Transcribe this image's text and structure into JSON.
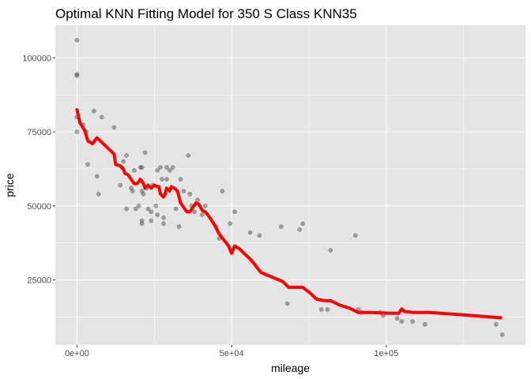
{
  "chart_data": {
    "type": "scatter",
    "title": "Optimal KNN Fitting Model for 350 S Class KNN35",
    "xlabel": "mileage",
    "ylabel": "price",
    "xlim": [
      -7000,
      145000
    ],
    "ylim": [
      3000,
      111000
    ],
    "x_ticks": [
      0,
      50000,
      100000
    ],
    "x_tick_labels": [
      "0e+00",
      "5e+04",
      "1e+05"
    ],
    "y_ticks": [
      25000,
      50000,
      75000,
      100000
    ],
    "y_tick_labels": [
      "25000",
      "50000",
      "75000",
      "100000"
    ],
    "grid": true,
    "legend": "none",
    "colors": {
      "panel": "#e5e5e5",
      "grid": "#ffffff",
      "points": "#333333",
      "fit_line": "#ff0000"
    },
    "series": [
      {
        "type": "scatter",
        "points": [
          [
            0,
            106000
          ],
          [
            0,
            94500
          ],
          [
            0,
            94000
          ],
          [
            0,
            80000
          ],
          [
            0,
            75000
          ],
          [
            2000,
            77500
          ],
          [
            3000,
            75000
          ],
          [
            3500,
            64000
          ],
          [
            5500,
            82000
          ],
          [
            6500,
            60000
          ],
          [
            7000,
            54000
          ],
          [
            8000,
            80000
          ],
          [
            12000,
            76500
          ],
          [
            14000,
            57000
          ],
          [
            14500,
            63000
          ],
          [
            15000,
            65000
          ],
          [
            16000,
            67000
          ],
          [
            16000,
            49000
          ],
          [
            17500,
            56000
          ],
          [
            18000,
            55000
          ],
          [
            18500,
            62000
          ],
          [
            19000,
            49000
          ],
          [
            20000,
            50000
          ],
          [
            20500,
            63000
          ],
          [
            21000,
            63000
          ],
          [
            21000,
            55000
          ],
          [
            21000,
            45000
          ],
          [
            21500,
            54000
          ],
          [
            21000,
            44000
          ],
          [
            22000,
            68000
          ],
          [
            22500,
            56000
          ],
          [
            23000,
            49000
          ],
          [
            24000,
            48000
          ],
          [
            24000,
            45000
          ],
          [
            24500,
            57000
          ],
          [
            25500,
            50000
          ],
          [
            26000,
            62000
          ],
          [
            26000,
            47000
          ],
          [
            27000,
            63000
          ],
          [
            27500,
            59000
          ],
          [
            28000,
            44000
          ],
          [
            28000,
            46000
          ],
          [
            29000,
            63000
          ],
          [
            29000,
            59000
          ],
          [
            30000,
            62000
          ],
          [
            31000,
            63000
          ],
          [
            32000,
            49000
          ],
          [
            33000,
            43000
          ],
          [
            33500,
            59000
          ],
          [
            34500,
            55000
          ],
          [
            36000,
            67000
          ],
          [
            36500,
            54000
          ],
          [
            37000,
            50000
          ],
          [
            38000,
            48000
          ],
          [
            39000,
            52000
          ],
          [
            40500,
            47000
          ],
          [
            41500,
            50000
          ],
          [
            45000,
            43000
          ],
          [
            46000,
            39000
          ],
          [
            47000,
            55000
          ],
          [
            49500,
            44000
          ],
          [
            51000,
            48000
          ],
          [
            56000,
            41000
          ],
          [
            59000,
            40000
          ],
          [
            66000,
            43000
          ],
          [
            68000,
            17000
          ],
          [
            72000,
            42000
          ],
          [
            73000,
            44000
          ],
          [
            79000,
            15000
          ],
          [
            81000,
            15000
          ],
          [
            82000,
            35000
          ],
          [
            90000,
            40000
          ],
          [
            91000,
            15000
          ],
          [
            92000,
            14000
          ],
          [
            98000,
            14000
          ],
          [
            99000,
            13000
          ],
          [
            103500,
            12000
          ],
          [
            105000,
            11000
          ],
          [
            108500,
            11000
          ],
          [
            112500,
            10000
          ],
          [
            135500,
            10000
          ],
          [
            137500,
            6500
          ]
        ]
      },
      {
        "type": "line",
        "points": [
          [
            0,
            82500
          ],
          [
            1000,
            78000
          ],
          [
            2500,
            75500
          ],
          [
            3500,
            72000
          ],
          [
            5000,
            71000
          ],
          [
            6500,
            73000
          ],
          [
            8000,
            71500
          ],
          [
            10000,
            69500
          ],
          [
            12000,
            67500
          ],
          [
            12500,
            64000
          ],
          [
            14000,
            63500
          ],
          [
            15000,
            62500
          ],
          [
            15500,
            61000
          ],
          [
            16500,
            60500
          ],
          [
            17500,
            59000
          ],
          [
            18500,
            57500
          ],
          [
            19500,
            57500
          ],
          [
            20500,
            59000
          ],
          [
            21500,
            57500
          ],
          [
            22000,
            56000
          ],
          [
            23000,
            57000
          ],
          [
            24000,
            56000
          ],
          [
            25000,
            57000
          ],
          [
            26000,
            56500
          ],
          [
            26500,
            56500
          ],
          [
            27000,
            54000
          ],
          [
            28000,
            53000
          ],
          [
            28500,
            54000
          ],
          [
            29000,
            56000
          ],
          [
            30000,
            55000
          ],
          [
            30500,
            56500
          ],
          [
            31500,
            56000
          ],
          [
            32500,
            55000
          ],
          [
            33500,
            51000
          ],
          [
            34500,
            49500
          ],
          [
            35500,
            48000
          ],
          [
            36500,
            48000
          ],
          [
            37500,
            49500
          ],
          [
            38500,
            51000
          ],
          [
            39500,
            50500
          ],
          [
            40500,
            48500
          ],
          [
            41500,
            48000
          ],
          [
            43000,
            46000
          ],
          [
            44500,
            43500
          ],
          [
            46000,
            40500
          ],
          [
            47500,
            38500
          ],
          [
            49000,
            36500
          ],
          [
            50000,
            34000
          ],
          [
            51000,
            36500
          ],
          [
            52500,
            35500
          ],
          [
            54500,
            33500
          ],
          [
            56500,
            31500
          ],
          [
            58000,
            29500
          ],
          [
            59500,
            27500
          ],
          [
            63000,
            26000
          ],
          [
            66500,
            24500
          ],
          [
            68500,
            22500
          ],
          [
            70500,
            22500
          ],
          [
            73000,
            22500
          ],
          [
            75500,
            20500
          ],
          [
            77500,
            18500
          ],
          [
            80000,
            18000
          ],
          [
            82000,
            18000
          ],
          [
            85000,
            16500
          ],
          [
            88000,
            15500
          ],
          [
            91000,
            14000
          ],
          [
            95000,
            14000
          ],
          [
            100000,
            13800
          ],
          [
            104000,
            13700
          ],
          [
            105000,
            15200
          ],
          [
            106000,
            14300
          ],
          [
            107500,
            14200
          ],
          [
            108500,
            14000
          ],
          [
            114000,
            14000
          ],
          [
            125000,
            13200
          ],
          [
            137000,
            12200
          ]
        ]
      }
    ]
  }
}
